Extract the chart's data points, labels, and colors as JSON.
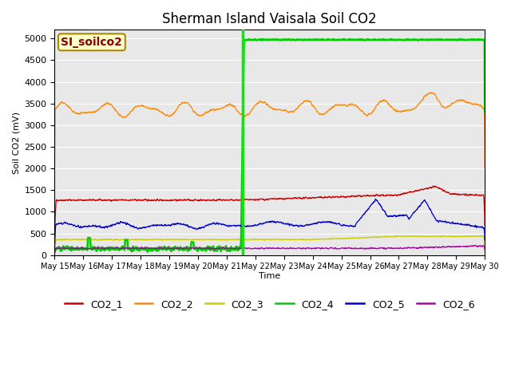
{
  "title": "Sherman Island Vaisala Soil CO2",
  "ylabel": "Soil CO2 (mV)",
  "xlabel": "Time",
  "watermark": "SI_soilco2",
  "ylim": [
    0,
    5200
  ],
  "yticks": [
    0,
    500,
    1000,
    1500,
    2000,
    2500,
    3000,
    3500,
    4000,
    4500,
    5000
  ],
  "vline_day": 21.55,
  "vline_color": "#00ee00",
  "colors": {
    "CO2_1": "#cc0000",
    "CO2_2": "#ff8800",
    "CO2_3": "#cccc00",
    "CO2_4": "#00cc00",
    "CO2_5": "#0000cc",
    "CO2_6": "#aa00aa"
  },
  "background_color": "#e8e8e8",
  "title_fontsize": 12,
  "watermark_fontsize": 10,
  "figsize": [
    6.4,
    4.8
  ],
  "dpi": 100
}
